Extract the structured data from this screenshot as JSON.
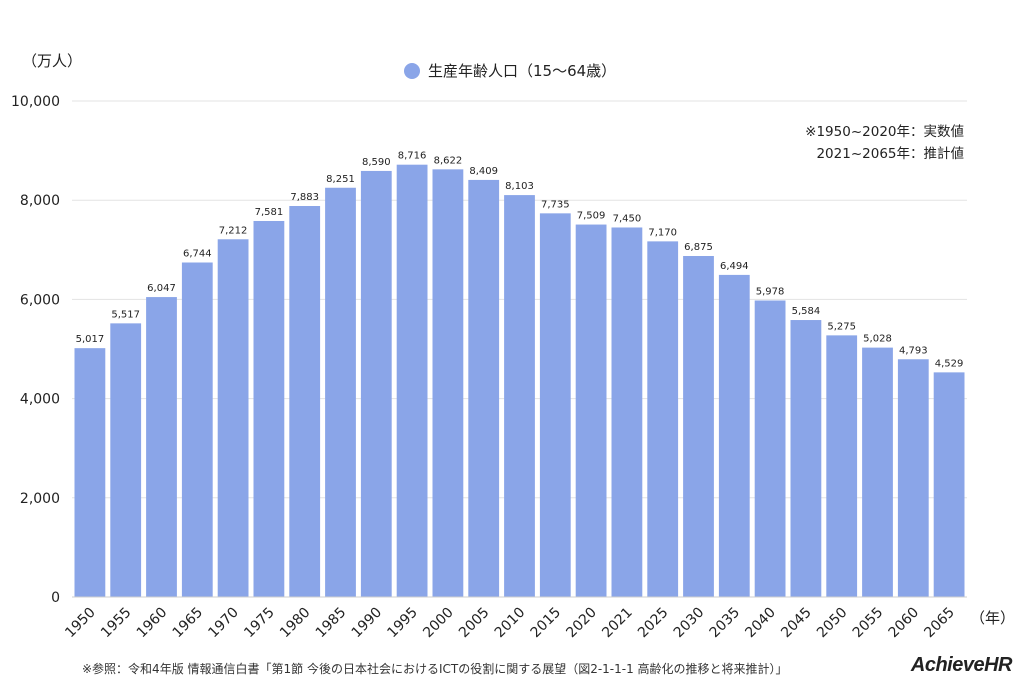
{
  "chart_data": {
    "type": "bar",
    "categories": [
      "1950",
      "1955",
      "1960",
      "1965",
      "1970",
      "1975",
      "1980",
      "1985",
      "1990",
      "1995",
      "2000",
      "2005",
      "2010",
      "2015",
      "2020",
      "2021",
      "2025",
      "2030",
      "2035",
      "2040",
      "2045",
      "2050",
      "2055",
      "2060",
      "2065"
    ],
    "series": [
      {
        "name": "生産年齢人口（15〜64歳）",
        "values": [
          5017,
          5517,
          6047,
          6744,
          7212,
          7581,
          7883,
          8251,
          8590,
          8716,
          8622,
          8409,
          8103,
          7735,
          7509,
          7450,
          7170,
          6875,
          6494,
          5978,
          5584,
          5275,
          5028,
          4793,
          4529
        ]
      }
    ],
    "data_labels": [
      "5,017",
      "5,517",
      "6,047",
      "6,744",
      "7,212",
      "7,581",
      "7,883",
      "8,251",
      "8,590",
      "8,716",
      "8,622",
      "8,409",
      "8,103",
      "7,735",
      "7,509",
      "7,450",
      "7,170",
      "6,875",
      "6,494",
      "5,978",
      "5,584",
      "5,275",
      "5,028",
      "4,793",
      "4,529"
    ],
    "y_ticks": [
      "0",
      "2,000",
      "4,000",
      "6,000",
      "8,000",
      "10,000"
    ],
    "ylim": [
      0,
      10000
    ],
    "ylabel": "（万人）",
    "xlabel": "（年）",
    "grid": true,
    "legend_position": "top-center",
    "bar_color": "#8aa5e8"
  },
  "notes": {
    "line1": "※1950~2020年：実数値",
    "line2": "2021~2065年：推計値"
  },
  "source": "※参照：令和4年版 情報通信白書「第1節 今後の日本社会におけるICTの役割に関する展望（図2-1-1-1 高齢化の推移と将来推計）」",
  "logo": "AchieveHR"
}
